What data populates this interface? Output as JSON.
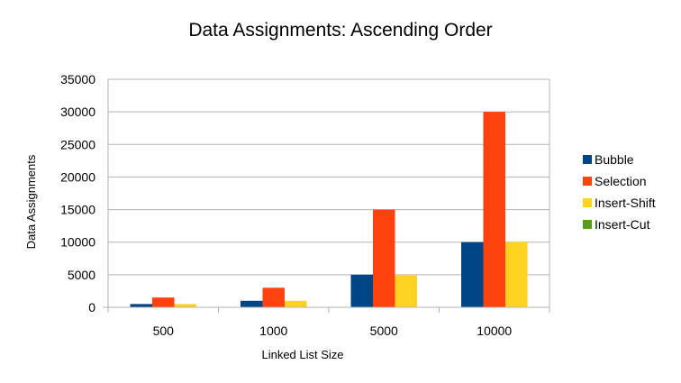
{
  "chart_data": {
    "type": "bar",
    "title": "Data Assignments: Ascending Order",
    "xlabel": "Linked List Size",
    "ylabel": "Data Assignments",
    "categories": [
      "500",
      "1000",
      "5000",
      "10000"
    ],
    "series": [
      {
        "name": "Bubble",
        "color": "#004586",
        "values": [
          500,
          1000,
          5000,
          10000
        ]
      },
      {
        "name": "Selection",
        "color": "#ff420e",
        "values": [
          1500,
          3000,
          15000,
          30000
        ]
      },
      {
        "name": "Insert-Shift",
        "color": "#ffd320",
        "values": [
          500,
          1000,
          5000,
          10000
        ]
      },
      {
        "name": "Insert-Cut",
        "color": "#579d1c",
        "values": [
          0,
          0,
          0,
          0
        ]
      }
    ],
    "ylim": [
      0,
      35000
    ],
    "yticks": [
      "0",
      "5000",
      "10000",
      "15000",
      "20000",
      "25000",
      "30000",
      "35000"
    ],
    "grid": true,
    "legend_position": "right"
  }
}
